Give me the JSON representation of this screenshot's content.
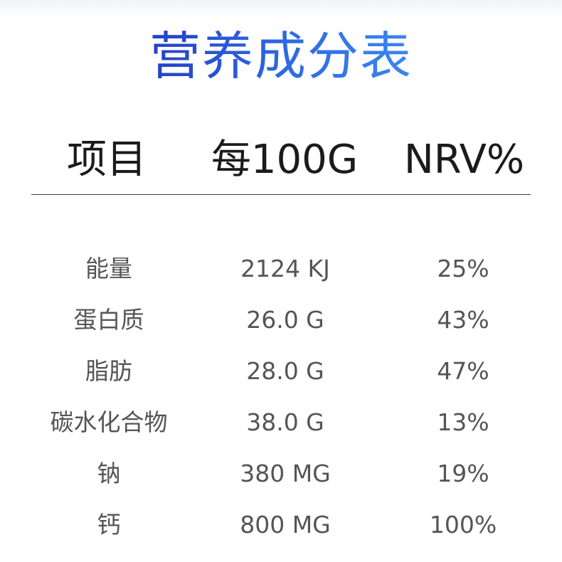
{
  "title": "营养成分表",
  "header": {
    "item": "项目",
    "per_100g": "每100G",
    "nrv": "NRV%"
  },
  "rows": [
    {
      "name": "能量",
      "per_100g": "2124 KJ",
      "nrv": "25%"
    },
    {
      "name": "蛋白质",
      "per_100g": "26.0 G",
      "nrv": "43%"
    },
    {
      "name": "脂肪",
      "per_100g": "28.0 G",
      "nrv": "47%"
    },
    {
      "name": "碳水化合物",
      "per_100g": "38.0 G",
      "nrv": "13%"
    },
    {
      "name": "钠",
      "per_100g": "380 MG",
      "nrv": "19%"
    },
    {
      "name": "钙",
      "per_100g": "800 MG",
      "nrv": "100%"
    }
  ],
  "colors": {
    "title_gradient_start": "#2540c9",
    "title_gradient_end": "#3b86ee",
    "header_text": "#1b1b1b",
    "body_text": "#555555",
    "divider": "#3a3a3a"
  }
}
